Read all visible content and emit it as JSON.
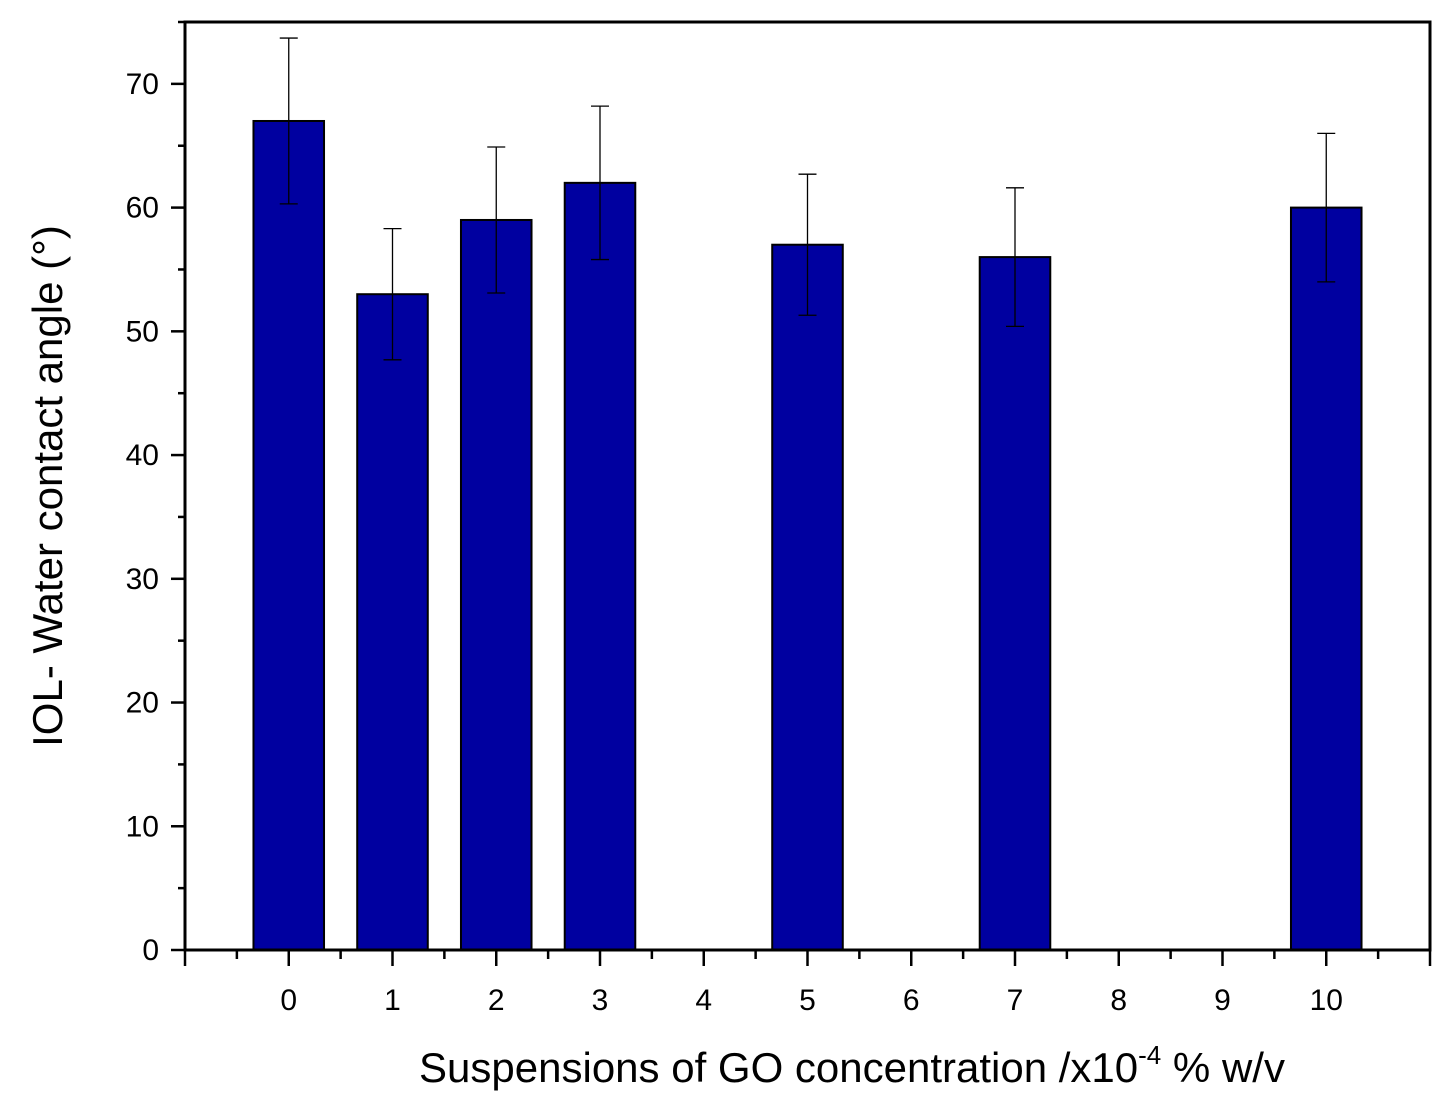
{
  "chart_data": {
    "type": "bar",
    "xlabel": {
      "before_sup": "Suspensions of  GO concentration /x10",
      "sup": "-4",
      "after_sup": " % w/v"
    },
    "ylabel": "IOL- Water contact angle (°)",
    "ylim": [
      0,
      75
    ],
    "xlim": [
      -1,
      11
    ],
    "y_ticks": [
      0,
      10,
      20,
      30,
      40,
      50,
      60,
      70
    ],
    "x_ticks": [
      0,
      1,
      2,
      3,
      4,
      5,
      6,
      7,
      8,
      9,
      10
    ],
    "series": [
      {
        "color": "#0000a0",
        "points": [
          {
            "x": 0,
            "value": 67,
            "error": 6.7
          },
          {
            "x": 1,
            "value": 53,
            "error": 5.3
          },
          {
            "x": 2,
            "value": 59,
            "error": 5.9
          },
          {
            "x": 3,
            "value": 62,
            "error": 6.2
          },
          {
            "x": 5,
            "value": 57,
            "error": 5.7
          },
          {
            "x": 7,
            "value": 56,
            "error": 5.6
          },
          {
            "x": 10,
            "value": 60,
            "error": 6.0
          }
        ]
      }
    ],
    "bar_color": "#0000a0",
    "grid": false
  }
}
